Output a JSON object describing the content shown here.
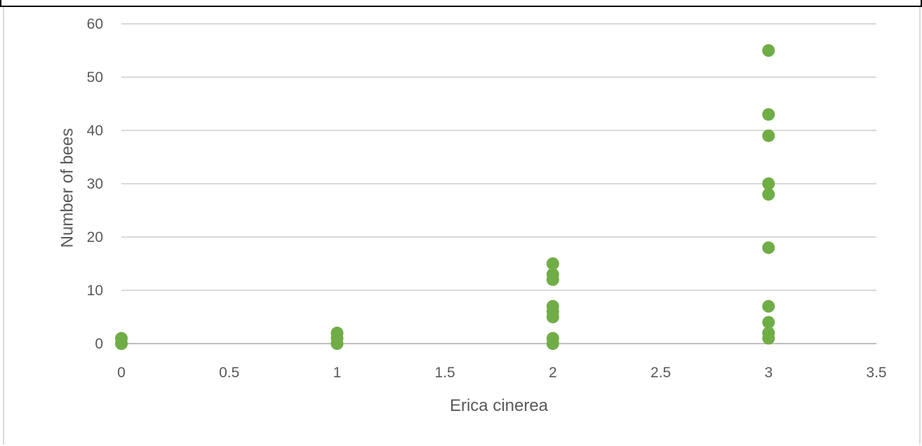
{
  "chart_data": {
    "type": "scatter",
    "title": "",
    "xlabel": "Erica cinerea",
    "ylabel": "Number of bees",
    "xlim": [
      0,
      3.5
    ],
    "ylim": [
      0,
      60
    ],
    "x_ticks": [
      "0",
      "0.5",
      "1",
      "1.5",
      "2",
      "2.5",
      "3",
      "3.5"
    ],
    "y_ticks": [
      "0",
      "10",
      "20",
      "30",
      "40",
      "50",
      "60"
    ],
    "grid": "horizontal",
    "marker_color": "#70ad47",
    "series": [
      {
        "points": [
          {
            "x": 0,
            "y": 0
          },
          {
            "x": 0,
            "y": 0
          },
          {
            "x": 0,
            "y": 1
          },
          {
            "x": 1,
            "y": 0
          },
          {
            "x": 1,
            "y": 1
          },
          {
            "x": 1,
            "y": 2
          },
          {
            "x": 2,
            "y": 0
          },
          {
            "x": 2,
            "y": 1
          },
          {
            "x": 2,
            "y": 5
          },
          {
            "x": 2,
            "y": 6
          },
          {
            "x": 2,
            "y": 7
          },
          {
            "x": 2,
            "y": 12
          },
          {
            "x": 2,
            "y": 13
          },
          {
            "x": 2,
            "y": 15
          },
          {
            "x": 3,
            "y": 1
          },
          {
            "x": 3,
            "y": 2
          },
          {
            "x": 3,
            "y": 4
          },
          {
            "x": 3,
            "y": 7
          },
          {
            "x": 3,
            "y": 18
          },
          {
            "x": 3,
            "y": 28
          },
          {
            "x": 3,
            "y": 30
          },
          {
            "x": 3,
            "y": 39
          },
          {
            "x": 3,
            "y": 43
          },
          {
            "x": 3,
            "y": 55
          }
        ]
      }
    ]
  }
}
